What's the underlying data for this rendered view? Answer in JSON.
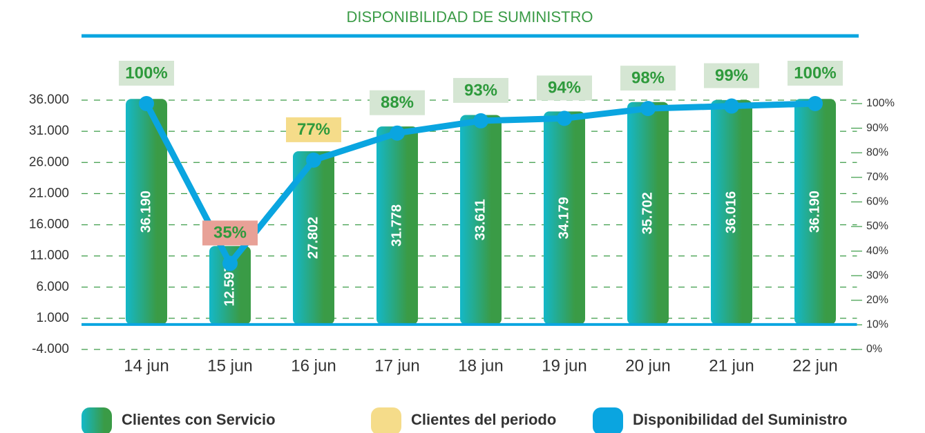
{
  "chart_data": {
    "type": "bar",
    "title": "DISPONIBILIDAD DE SUMINISTRO",
    "categories": [
      "14 jun",
      "15 jun",
      "16 jun",
      "17 jun",
      "18 jun",
      "19 jun",
      "20 jun",
      "21 jun",
      "22 jun"
    ],
    "ylim": [
      -4000,
      36000
    ],
    "yticks": [
      {
        "value": -4000,
        "label": "-4.000"
      },
      {
        "value": 1000,
        "label": "1.000"
      },
      {
        "value": 6000,
        "label": "6.000"
      },
      {
        "value": 11000,
        "label": "11.000"
      },
      {
        "value": 16000,
        "label": "16.000"
      },
      {
        "value": 21000,
        "label": "21.000"
      },
      {
        "value": 26000,
        "label": "26.000"
      },
      {
        "value": 31000,
        "label": "31.000"
      },
      {
        "value": 36000,
        "label": "36.000"
      }
    ],
    "y2lim": [
      0,
      100
    ],
    "y2ticks": [
      {
        "value": 0,
        "label": "0%"
      },
      {
        "value": 10,
        "label": "10%"
      },
      {
        "value": 20,
        "label": "20%"
      },
      {
        "value": 30,
        "label": "30%"
      },
      {
        "value": 40,
        "label": "40%"
      },
      {
        "value": 50,
        "label": "50%"
      },
      {
        "value": 60,
        "label": "60%"
      },
      {
        "value": 70,
        "label": "70%"
      },
      {
        "value": 80,
        "label": "80%"
      },
      {
        "value": 90,
        "label": "90%"
      },
      {
        "value": 100,
        "label": "100%"
      }
    ],
    "grid": true,
    "series": [
      {
        "name": "Clientes con Servicio",
        "color": "#3a9b46",
        "values": [
          36190,
          12597,
          27802,
          31778,
          33611,
          34179,
          35702,
          36016,
          36190
        ],
        "value_labels": [
          "36.190",
          "12.597",
          "27.802",
          "31.778",
          "33.611",
          "34.179",
          "35.702",
          "36.016",
          "36.190"
        ]
      },
      {
        "name": "Clientes del periodo",
        "color": "#f5dc8a"
      },
      {
        "name": "Disponibilidad del Suministro",
        "type": "line",
        "axis": "y2",
        "color": "#0aa5e0",
        "values": [
          100,
          35,
          77,
          88,
          93,
          94,
          98,
          99,
          100
        ],
        "value_labels": [
          "100%",
          "35%",
          "77%",
          "88%",
          "93%",
          "94%",
          "98%",
          "99%",
          "100%"
        ],
        "label_colors": [
          "#d5e6d3",
          "#e8a197",
          "#f5dc8a",
          "#d5e6d3",
          "#d5e6d3",
          "#d5e6d3",
          "#d5e6d3",
          "#d5e6d3",
          "#d5e6d3"
        ]
      }
    ]
  }
}
